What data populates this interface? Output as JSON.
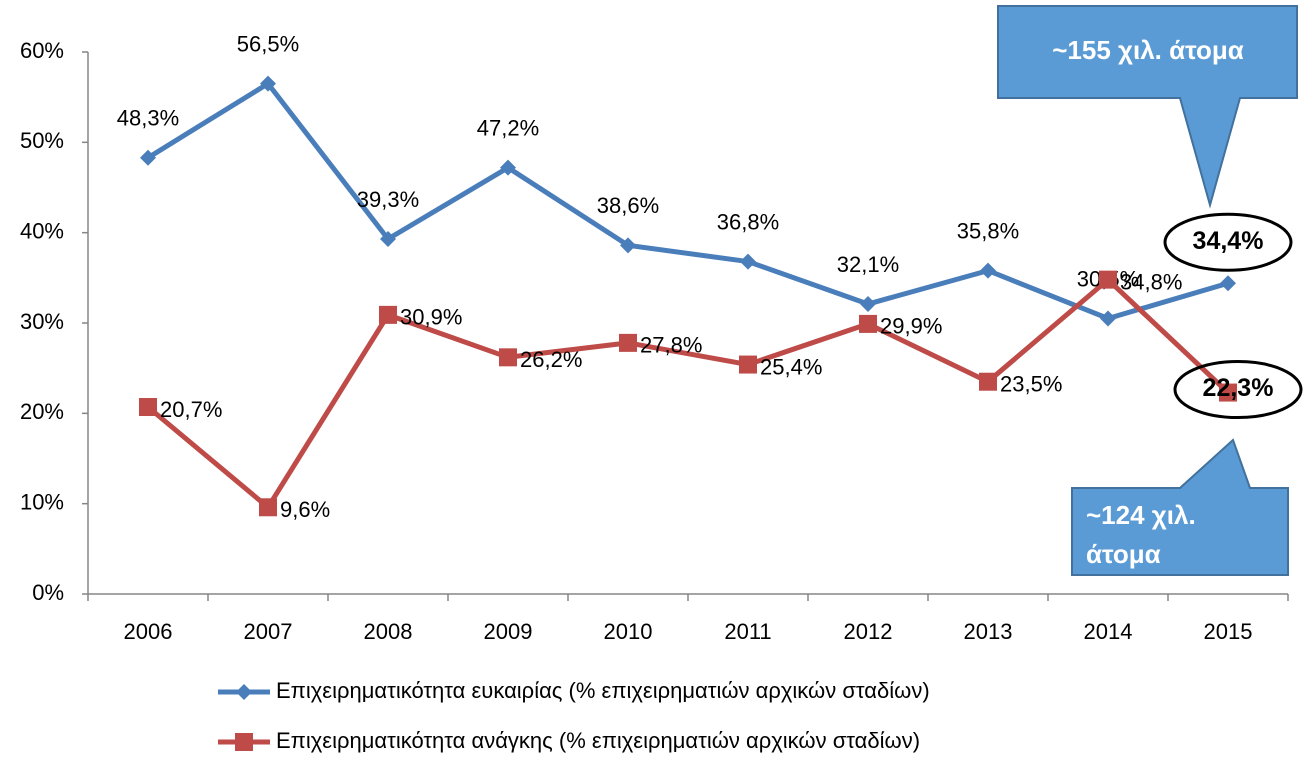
{
  "chart_data": {
    "type": "line",
    "categories": [
      "2006",
      "2007",
      "2008",
      "2009",
      "2010",
      "2011",
      "2012",
      "2013",
      "2014",
      "2015"
    ],
    "series": [
      {
        "name": "Επιχειρηματικότητα ευκαιρίας (% επιχειρηματιών αρχικών σταδίων)",
        "color": "#4a7ebb",
        "marker": "diamond",
        "values": [
          48.3,
          56.5,
          39.3,
          47.2,
          38.6,
          36.8,
          32.1,
          35.8,
          30.5,
          34.4
        ],
        "value_labels": [
          "48,3%",
          "56,5%",
          "39,3%",
          "47,2%",
          "38,6%",
          "36,8%",
          "32,1%",
          "35,8%",
          "30,5%",
          "34,4%"
        ]
      },
      {
        "name": "Επιχειρηματικότητα ανάγκης (% επιχειρηματιών αρχικών σταδίων)",
        "color": "#be4b48",
        "marker": "square",
        "values": [
          20.7,
          9.6,
          30.9,
          26.2,
          27.8,
          25.4,
          29.9,
          23.5,
          34.8,
          22.3
        ],
        "value_labels": [
          "20,7%",
          "9,6%",
          "30,9%",
          "26,2%",
          "27,8%",
          "25,4%",
          "29,9%",
          "23,5%",
          "34,8%",
          "22,3%"
        ]
      }
    ],
    "ylim": [
      0,
      60
    ],
    "yticks": [
      {
        "value": 0,
        "label": "0%"
      },
      {
        "value": 10,
        "label": "10%"
      },
      {
        "value": 20,
        "label": "20%"
      },
      {
        "value": 30,
        "label": "30%"
      },
      {
        "value": 40,
        "label": "40%"
      },
      {
        "value": 50,
        "label": "50%"
      },
      {
        "value": 60,
        "label": "60%"
      }
    ],
    "grid": false,
    "legend": "bottom",
    "annotations": [
      {
        "lines": [
          "~155 χιλ. άτομα"
        ]
      },
      {
        "lines": [
          "~124 χιλ.",
          "άτομα"
        ]
      }
    ]
  }
}
